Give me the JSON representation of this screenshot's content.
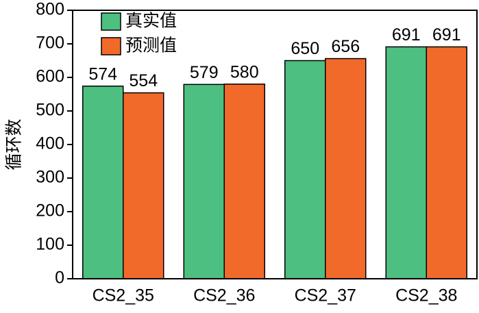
{
  "chart_data": {
    "type": "bar",
    "y_label": "循环数",
    "categories": [
      "CS2_35",
      "CS2_36",
      "CS2_37",
      "CS2_38"
    ],
    "series": [
      {
        "name": "真实值",
        "color": "#4dbf80",
        "values": [
          574,
          579,
          650,
          691
        ]
      },
      {
        "name": "预测值",
        "color": "#f26a2a",
        "values": [
          554,
          580,
          656,
          691
        ]
      }
    ],
    "ylim": [
      0,
      800
    ],
    "yticks": [
      0,
      100,
      200,
      300,
      400,
      500,
      600,
      700,
      800
    ],
    "legend": "upper left",
    "show_value_labels": true
  }
}
